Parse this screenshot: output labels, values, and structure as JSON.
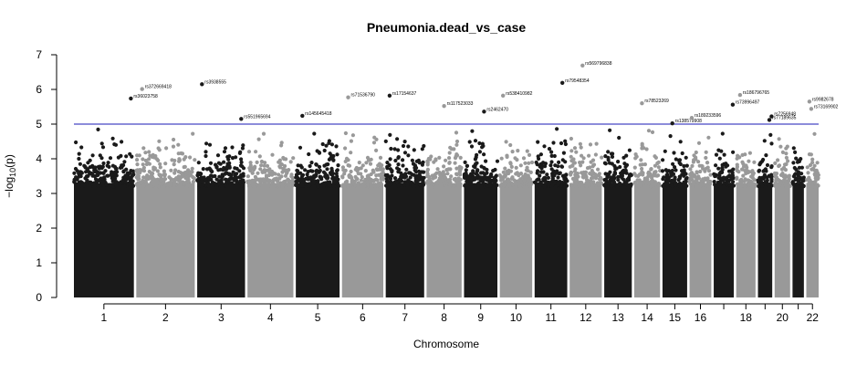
{
  "chart_data": {
    "type": "scatter",
    "subtype": "manhattan",
    "title": "Pneumonia.dead_vs_case",
    "xlabel": "Chromosome",
    "ylabel_base": "−log",
    "ylabel_sub": "10",
    "ylabel_arg": "(p)",
    "ylim": [
      0,
      7
    ],
    "yticks": [
      "0",
      "1",
      "2",
      "3",
      "4",
      "5",
      "6",
      "7"
    ],
    "threshold": 5,
    "colors": {
      "odd": "#1a1a1a",
      "even": "#999999",
      "threshold": "#1a1ab4",
      "axis": "#000000"
    },
    "chromosomes": [
      {
        "chr": 1,
        "label": "1",
        "size": 248
      },
      {
        "chr": 2,
        "label": "2",
        "size": 242
      },
      {
        "chr": 3,
        "label": "3",
        "size": 198
      },
      {
        "chr": 4,
        "label": "4",
        "size": 190
      },
      {
        "chr": 5,
        "label": "5",
        "size": 181
      },
      {
        "chr": 6,
        "label": "6",
        "size": 171
      },
      {
        "chr": 7,
        "label": "7",
        "size": 159
      },
      {
        "chr": 8,
        "label": "8",
        "size": 145
      },
      {
        "chr": 9,
        "label": "9",
        "size": 138
      },
      {
        "chr": 10,
        "label": "10",
        "size": 134
      },
      {
        "chr": 11,
        "label": "11",
        "size": 135
      },
      {
        "chr": 12,
        "label": "12",
        "size": 133
      },
      {
        "chr": 13,
        "label": "13",
        "size": 114
      },
      {
        "chr": 14,
        "label": "14",
        "size": 107
      },
      {
        "chr": 15,
        "label": "15",
        "size": 102
      },
      {
        "chr": 16,
        "label": "16",
        "size": 90
      },
      {
        "chr": 17,
        "label": "",
        "size": 83
      },
      {
        "chr": 18,
        "label": "18",
        "size": 80
      },
      {
        "chr": 19,
        "label": "",
        "size": 59
      },
      {
        "chr": 20,
        "label": "20",
        "size": 64
      },
      {
        "chr": 21,
        "label": "",
        "size": 47
      },
      {
        "chr": 22,
        "label": "22",
        "size": 51
      }
    ],
    "annotated_snps": [
      {
        "chr": 1,
        "pos": 0.95,
        "y": 5.74,
        "rsid": "rs36023758"
      },
      {
        "chr": 2,
        "pos": 0.1,
        "y": 6.01,
        "rsid": "rs372669418"
      },
      {
        "chr": 3,
        "pos": 0.1,
        "y": 6.15,
        "rsid": "rs3938555"
      },
      {
        "chr": 3,
        "pos": 0.92,
        "y": 5.15,
        "rsid": "rs551965694"
      },
      {
        "chr": 5,
        "pos": 0.15,
        "y": 5.24,
        "rsid": "rs145645418"
      },
      {
        "chr": 6,
        "pos": 0.15,
        "y": 5.77,
        "rsid": "rs71536790"
      },
      {
        "chr": 7,
        "pos": 0.1,
        "y": 5.82,
        "rsid": "rs17154637"
      },
      {
        "chr": 8,
        "pos": 0.5,
        "y": 5.52,
        "rsid": "rs117523033"
      },
      {
        "chr": 9,
        "pos": 0.6,
        "y": 5.36,
        "rsid": "rs2462470"
      },
      {
        "chr": 10,
        "pos": 0.1,
        "y": 5.82,
        "rsid": "rs538410982"
      },
      {
        "chr": 11,
        "pos": 0.85,
        "y": 6.19,
        "rsid": "rs79548354"
      },
      {
        "chr": 12,
        "pos": 0.4,
        "y": 6.69,
        "rsid": "rs569796838"
      },
      {
        "chr": 14,
        "pos": 0.3,
        "y": 5.6,
        "rsid": "rs78523269"
      },
      {
        "chr": 15,
        "pos": 0.4,
        "y": 5.02,
        "rsid": "rs138579908"
      },
      {
        "chr": 16,
        "pos": 0.1,
        "y": 5.18,
        "rsid": "rs189233596"
      },
      {
        "chr": 17,
        "pos": 0.95,
        "y": 5.56,
        "rsid": "rs73996497"
      },
      {
        "chr": 18,
        "pos": 0.2,
        "y": 5.84,
        "rsid": "rs186796765"
      },
      {
        "chr": 19,
        "pos": 0.8,
        "y": 5.12,
        "rsid": "rs77189635"
      },
      {
        "chr": 19,
        "pos": 0.95,
        "y": 5.22,
        "rsid": "rs7256948"
      },
      {
        "chr": 22,
        "pos": 0.25,
        "y": 5.65,
        "rsid": "rs9982678"
      },
      {
        "chr": 22,
        "pos": 0.4,
        "y": 5.44,
        "rsid": "rs73169902"
      }
    ]
  }
}
